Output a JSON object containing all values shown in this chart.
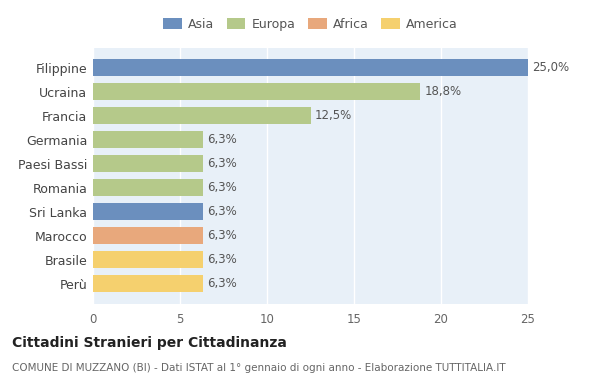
{
  "categories": [
    "Filippine",
    "Ucraina",
    "Francia",
    "Germania",
    "Paesi Bassi",
    "Romania",
    "Sri Lanka",
    "Marocco",
    "Brasile",
    "Perù"
  ],
  "values": [
    25.0,
    18.8,
    12.5,
    6.3,
    6.3,
    6.3,
    6.3,
    6.3,
    6.3,
    6.3
  ],
  "labels": [
    "25,0%",
    "18,8%",
    "12,5%",
    "6,3%",
    "6,3%",
    "6,3%",
    "6,3%",
    "6,3%",
    "6,3%",
    "6,3%"
  ],
  "bar_colors": [
    "#6b8fbe",
    "#b5c98a",
    "#b5c98a",
    "#b5c98a",
    "#b5c98a",
    "#b5c98a",
    "#6b8fbe",
    "#e8a87c",
    "#f5d06e",
    "#f5d06e"
  ],
  "legend_labels": [
    "Asia",
    "Europa",
    "Africa",
    "America"
  ],
  "legend_colors": [
    "#6b8fbe",
    "#b5c98a",
    "#e8a87c",
    "#f5d06e"
  ],
  "title": "Cittadini Stranieri per Cittadinanza",
  "subtitle": "COMUNE DI MUZZANO (BI) - Dati ISTAT al 1° gennaio di ogni anno - Elaborazione TUTTITALIA.IT",
  "xlim": [
    0,
    25
  ],
  "xticks": [
    0,
    5,
    10,
    15,
    20,
    25
  ],
  "figure_bg": "#ffffff",
  "axes_bg": "#e8f0f8",
  "grid_color": "#ffffff",
  "label_color": "#555555",
  "label_fontsize": 8.5,
  "ytick_fontsize": 9,
  "xtick_fontsize": 8.5,
  "title_fontsize": 10,
  "subtitle_fontsize": 7.5,
  "bar_height": 0.72
}
